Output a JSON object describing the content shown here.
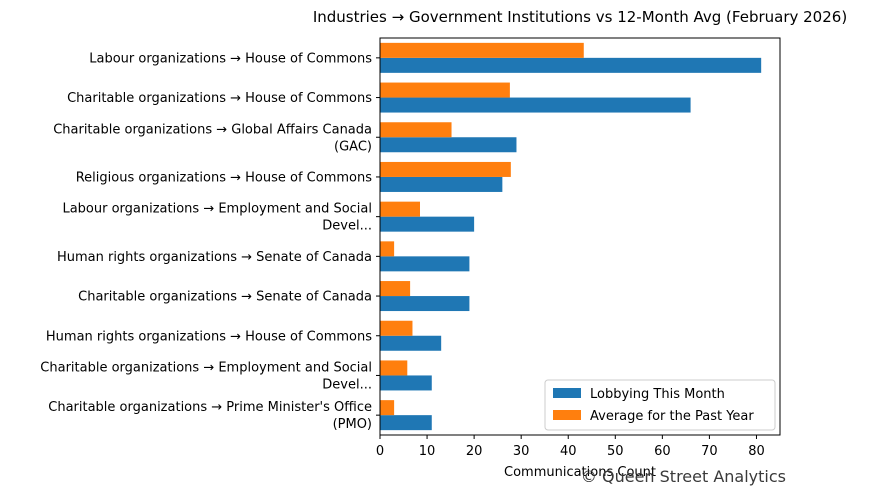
{
  "chart_data": {
    "type": "bar",
    "orientation": "horizontal",
    "title": "Industries → Government Institutions vs 12-Month Avg (February 2026)",
    "xlabel": "Communications Count",
    "ylabel": "",
    "xlim": [
      0,
      85
    ],
    "xticks": [
      0,
      10,
      20,
      30,
      40,
      50,
      60,
      70,
      80
    ],
    "grid": false,
    "legend_position": "lower-right",
    "categories": [
      [
        "Labour organizations → House of Commons"
      ],
      [
        "Charitable organizations → House of Commons"
      ],
      [
        "Charitable organizations → Global Affairs Canada",
        "(GAC)"
      ],
      [
        "Religious organizations → House of Commons"
      ],
      [
        "Labour organizations → Employment and Social",
        "Devel..."
      ],
      [
        "Human rights organizations → Senate of Canada"
      ],
      [
        "Charitable organizations → Senate of Canada"
      ],
      [
        "Human rights organizations → House of Commons"
      ],
      [
        "Charitable organizations → Employment and Social",
        "Devel..."
      ],
      [
        "Charitable organizations → Prime Minister's Office",
        "(PMO)"
      ]
    ],
    "series": [
      {
        "name": "Lobbying This Month",
        "color": "#1f77b4",
        "values": [
          81,
          66,
          29,
          26,
          20,
          19,
          19,
          13,
          11,
          11
        ]
      },
      {
        "name": "Average for the Past Year",
        "color": "#ff7f0e",
        "values": [
          43.3,
          27.6,
          15.2,
          27.8,
          8.5,
          3.0,
          6.4,
          6.9,
          5.8,
          3.0
        ]
      }
    ]
  },
  "watermark": "© Queen Street Analytics"
}
